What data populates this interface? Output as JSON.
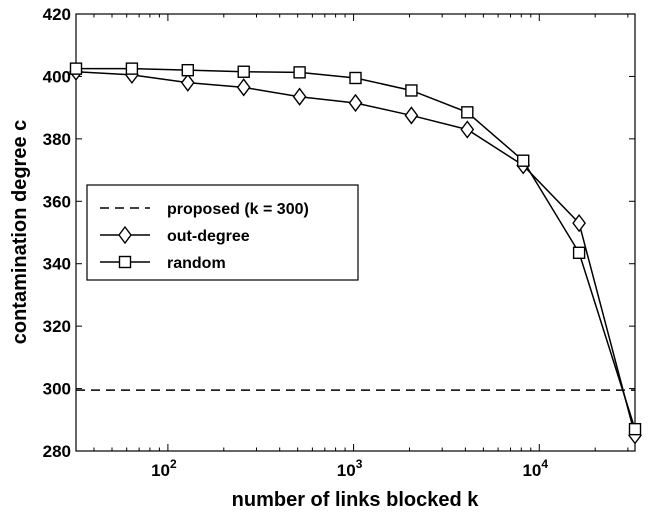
{
  "chart_data": {
    "type": "line",
    "title": "",
    "xlabel": "number of links blocked  k",
    "ylabel": "contamination degree  c",
    "xscale": "log",
    "xlim": [
      32,
      32768
    ],
    "ylim": [
      280,
      420
    ],
    "yticks": [
      280,
      300,
      320,
      340,
      360,
      380,
      400,
      420
    ],
    "xticks": [
      {
        "value": 100,
        "base": "10",
        "exp": "2"
      },
      {
        "value": 1000,
        "base": "10",
        "exp": "3"
      },
      {
        "value": 10000,
        "base": "10",
        "exp": "4"
      }
    ],
    "grid": false,
    "legend_position": "left-middle",
    "series": [
      {
        "name": "proposed (k = 300)",
        "style": "dashed",
        "marker": "none",
        "x": [
          32,
          32768
        ],
        "y": [
          299.5,
          299.5
        ]
      },
      {
        "name": "out-degree",
        "style": "solid",
        "marker": "diamond",
        "x": [
          32,
          64,
          128,
          256,
          512,
          1024,
          2048,
          4096,
          8192,
          16384,
          32768
        ],
        "y": [
          401.5,
          400.5,
          398,
          396.5,
          393.5,
          391.5,
          387.5,
          383,
          371.5,
          353,
          285
        ]
      },
      {
        "name": "random",
        "style": "solid",
        "marker": "square",
        "x": [
          32,
          64,
          128,
          256,
          512,
          1024,
          2048,
          4096,
          8192,
          16384,
          32768
        ],
        "y": [
          402.5,
          402.5,
          402,
          401.5,
          401.3,
          399.5,
          395.5,
          388.5,
          373,
          343.5,
          287
        ]
      }
    ]
  }
}
